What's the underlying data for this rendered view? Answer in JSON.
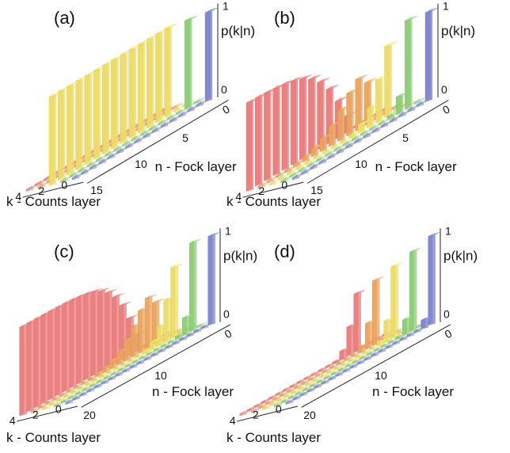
{
  "colors": {
    "k0": "#7f87d4",
    "k1": "#8fd27a",
    "k2": "#f2e06a",
    "k3": "#f0a860",
    "k4": "#ee7c7c"
  },
  "chart_data": [
    {
      "panel": "(a)",
      "type": "3d-bar",
      "n_max": 15,
      "k_max": 4,
      "xlabel": "n - Fock layer",
      "ylabel": "k - Counts layer",
      "zlabel": "p(k|n)",
      "x_ticks": [
        "5",
        "10",
        "15"
      ],
      "x_tick_values": [
        5,
        10,
        15
      ],
      "y_ticks": [
        "0",
        "2",
        "4"
      ],
      "y_tick_values": [
        0,
        2,
        4
      ],
      "z_ticks": [
        "0",
        "1"
      ],
      "zlim": [
        0,
        1
      ],
      "distribution": "p(0|0)=1, p(1|1)=1, p(2|n)=1 for n>=2"
    },
    {
      "panel": "(b)",
      "type": "3d-bar",
      "n_max": 15,
      "k_max": 4,
      "xlabel": "n - Fock layer",
      "ylabel": "k - Counts layer",
      "zlabel": "p(k|n)",
      "x_ticks": [
        "5",
        "10",
        "15"
      ],
      "x_tick_values": [
        5,
        10,
        15
      ],
      "y_ticks": [
        "0",
        "2",
        "4"
      ],
      "y_tick_values": [
        0,
        2,
        4
      ],
      "z_ticks": [
        "0",
        "1"
      ],
      "zlim": [
        0,
        1
      ],
      "distribution": "5 detector modes, uniform photon distribution; p(4|n) approaches 1 for large n"
    },
    {
      "panel": "(c)",
      "type": "3d-bar",
      "n_max": 20,
      "k_max": 4,
      "xlabel": "n - Fock layer",
      "ylabel": "k - Counts layer",
      "zlabel": "p(k|n)",
      "x_ticks": [
        "10",
        "20"
      ],
      "x_tick_values": [
        10,
        20
      ],
      "y_ticks": [
        "0",
        "2",
        "4"
      ],
      "y_tick_values": [
        0,
        2,
        4
      ],
      "z_ticks": [
        "0",
        "1"
      ],
      "zlim": [
        0,
        1
      ],
      "distribution": "5 detector modes, uniform photon distribution"
    },
    {
      "panel": "(d)",
      "type": "3d-bar",
      "n_max": 20,
      "k_max": 4,
      "xlabel": "n - Fock layer",
      "ylabel": "k - Counts layer",
      "zlabel": "p(k|n)",
      "x_ticks": [
        "10",
        "20"
      ],
      "x_tick_values": [
        10,
        20
      ],
      "y_ticks": [
        "0",
        "2",
        "4"
      ],
      "y_tick_values": [
        0,
        2,
        4
      ],
      "z_ticks": [
        "0",
        "1"
      ],
      "zlim": [
        0,
        1
      ],
      "distribution": "binomial loss, efficiency about 0.9"
    }
  ]
}
